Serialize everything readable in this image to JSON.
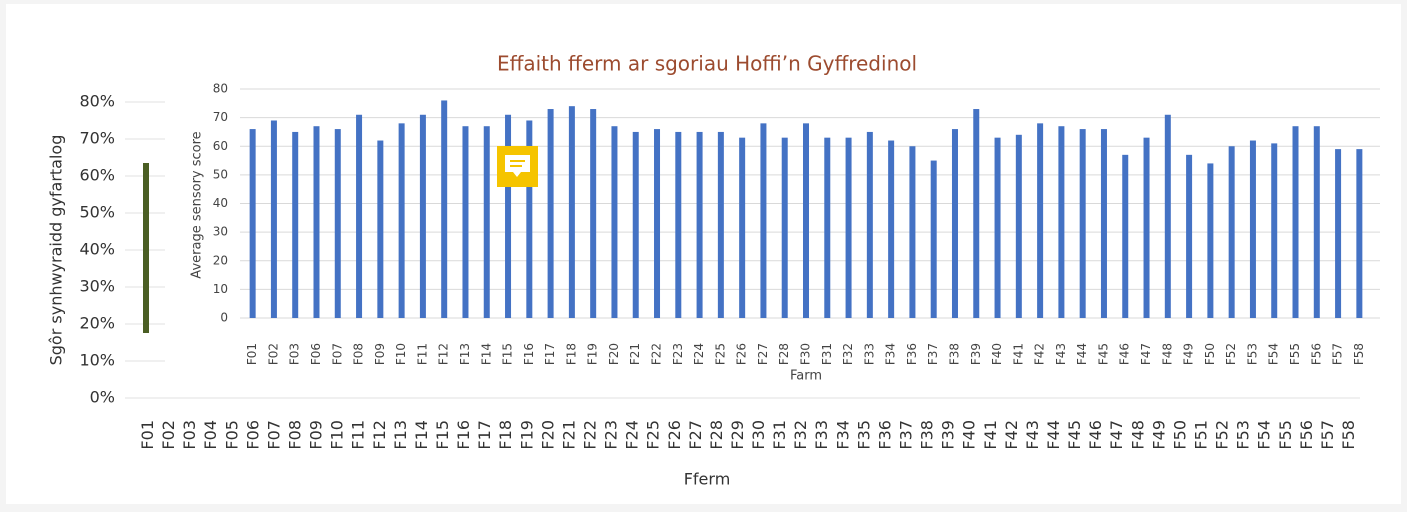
{
  "chart_data": [
    {
      "type": "bar",
      "title": "Effaith fferm ar sgoriau Hoffi’n Gyffredinol",
      "y_label": "Sgôr synhwyraidd gyfartalog",
      "x_label": "Fferm",
      "categories": [
        "F01",
        "F02",
        "F03",
        "F04",
        "F05",
        "F06",
        "F07",
        "F08",
        "F09",
        "F10",
        "F11",
        "F12",
        "F13",
        "F14",
        "F15",
        "F16",
        "F17",
        "F18",
        "F19",
        "F20",
        "F21",
        "F22",
        "F23",
        "F24",
        "F25",
        "F26",
        "F27",
        "F28",
        "F29",
        "F30",
        "F31",
        "F32",
        "F33",
        "F34",
        "F35",
        "F36",
        "F37",
        "F38",
        "F39",
        "F40",
        "F41",
        "F42",
        "F43",
        "F44",
        "F45",
        "F46",
        "F47",
        "F48",
        "F49",
        "F50",
        "F51",
        "F52",
        "F53",
        "F54",
        "F55",
        "F56",
        "F57",
        "F58"
      ],
      "ylim": [
        0,
        80
      ],
      "yticks": [
        {
          "value": 0,
          "label": "0%"
        },
        {
          "value": 10,
          "label": "10%"
        },
        {
          "value": 20,
          "label": "20%"
        },
        {
          "value": 30,
          "label": "30%"
        },
        {
          "value": 40,
          "label": "40%"
        },
        {
          "value": 50,
          "label": "50%"
        },
        {
          "value": 60,
          "label": "60%"
        },
        {
          "value": 70,
          "label": "70%"
        },
        {
          "value": 80,
          "label": "80%"
        }
      ],
      "grid": true
    },
    {
      "type": "bar",
      "y_label": "Average sensory score",
      "x_label": "Farm",
      "categories": [
        "F01",
        "F02",
        "F03",
        "F06",
        "F07",
        "F08",
        "F09",
        "F10",
        "F11",
        "F12",
        "F13",
        "F14",
        "F15",
        "F16",
        "F17",
        "F18",
        "F19",
        "F20",
        "F21",
        "F22",
        "F23",
        "F24",
        "F25",
        "F26",
        "F27",
        "F28",
        "F30",
        "F31",
        "F32",
        "F33",
        "F34",
        "F36",
        "F37",
        "F38",
        "F39",
        "F40",
        "F41",
        "F42",
        "F43",
        "F44",
        "F45",
        "F46",
        "F47",
        "F48",
        "F49",
        "F50",
        "F52",
        "F53",
        "F54",
        "F55",
        "F56",
        "F57",
        "F58"
      ],
      "values": [
        66,
        69,
        65,
        67,
        66,
        71,
        62,
        68,
        71,
        76,
        67,
        67,
        71,
        69,
        73,
        74,
        73,
        67,
        65,
        66,
        65,
        65,
        65,
        63,
        68,
        63,
        68,
        63,
        63,
        65,
        62,
        60,
        55,
        66,
        73,
        63,
        64,
        68,
        67,
        66,
        66,
        57,
        63,
        71,
        57,
        54,
        60,
        62,
        61,
        67,
        67,
        59,
        59
      ],
      "color": "#4472c4",
      "ylim": [
        0,
        80
      ],
      "yticks": [
        0,
        10,
        20,
        30,
        40,
        50,
        60,
        70,
        80
      ],
      "grid": true
    }
  ]
}
